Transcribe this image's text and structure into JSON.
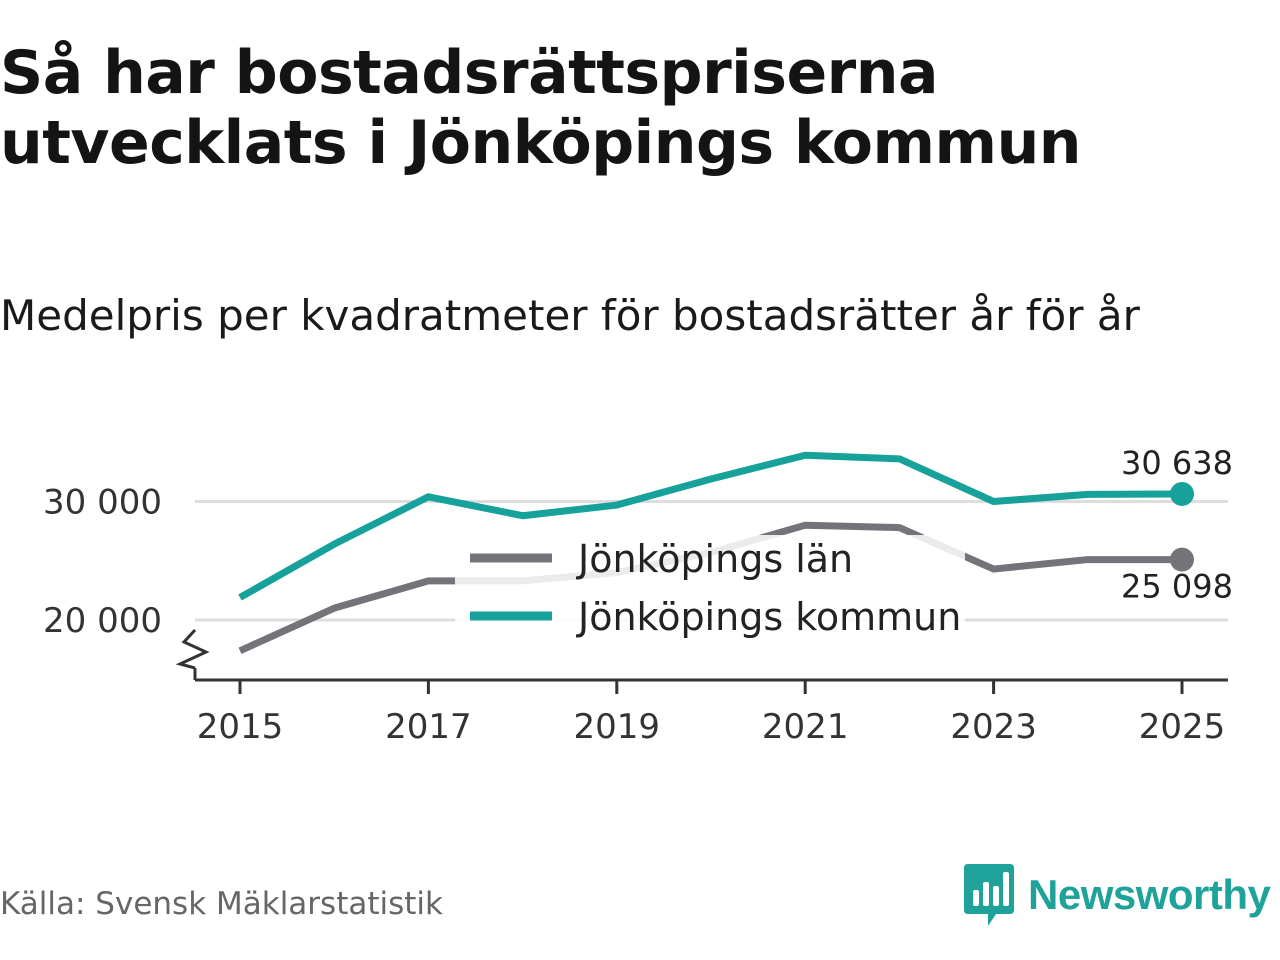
{
  "title": "Så har bostadsrättspriserna utvecklats i Jönköpings kommun",
  "subtitle": "Medelpris per kvadratmeter för bostadsrätter år för år",
  "source": "Källa: Svensk Mäklarstatistik",
  "brand": {
    "name": "Newsworthy",
    "logo_icon": "bar-chart-speech-bubble-icon",
    "color": "#1fa29a"
  },
  "chart_data": {
    "type": "line",
    "title": "Så har bostadsrättspriserna utvecklats i Jönköpings kommun",
    "subtitle": "Medelpris per kvadratmeter för bostadsrätter år för år",
    "x": [
      2015,
      2016,
      2017,
      2018,
      2019,
      2020,
      2021,
      2022,
      2023,
      2024,
      2025
    ],
    "x_ticks": [
      2015,
      2017,
      2019,
      2021,
      2023,
      2025
    ],
    "x_tick_labels": [
      "2015",
      "2017",
      "2019",
      "2021",
      "2023",
      "2025"
    ],
    "y_ticks": [
      20000,
      30000
    ],
    "y_tick_labels": [
      "20 000",
      "30 000"
    ],
    "ylim": [
      15000,
      37000
    ],
    "y_axis_break": true,
    "grid": true,
    "legend_position": "center",
    "series": [
      {
        "name": "Jönköpings län",
        "color": "#74737a",
        "values": [
          17400,
          21000,
          23300,
          23300,
          24000,
          25700,
          28000,
          27800,
          24300,
          25100,
          25098
        ],
        "end_label": "25 098"
      },
      {
        "name": "Jönköpings kommun",
        "color": "#16a19a",
        "values": [
          21900,
          26400,
          30400,
          28800,
          29700,
          31900,
          33900,
          33600,
          30000,
          30600,
          30638
        ],
        "end_label": "30 638"
      }
    ]
  }
}
